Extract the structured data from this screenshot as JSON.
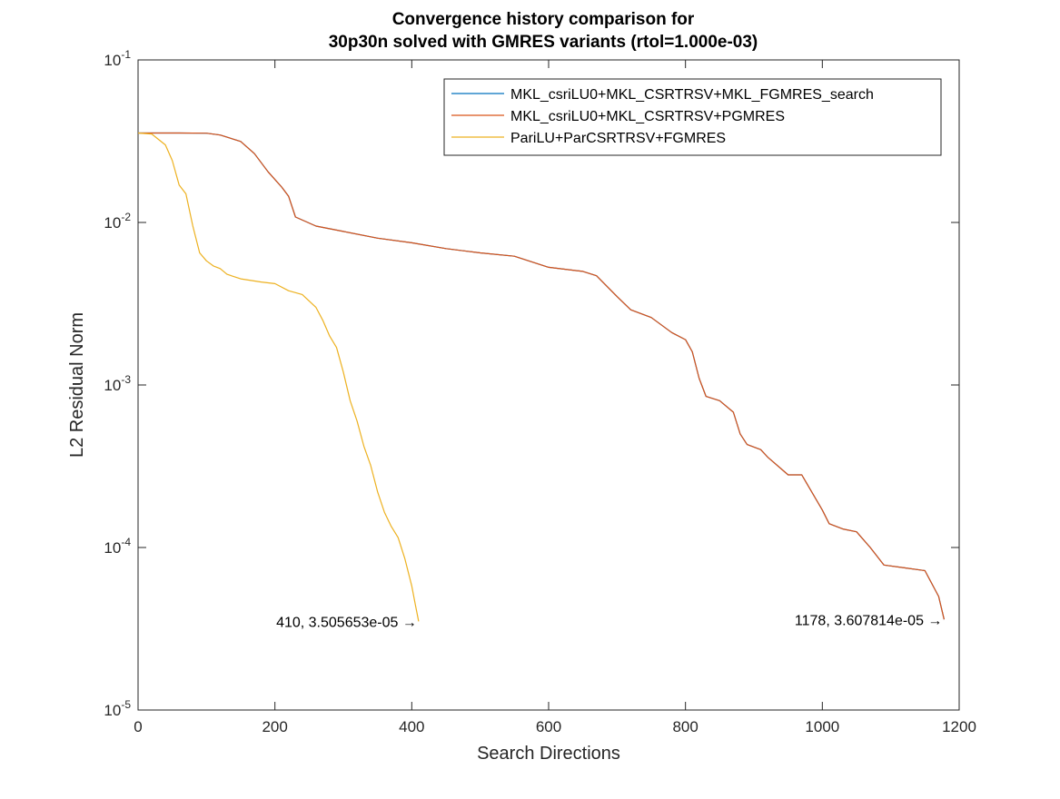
{
  "chart_data": {
    "type": "line",
    "title_lines": [
      "Convergence history comparison for",
      "30p30n solved with GMRES variants (rtol=1.000e-03)"
    ],
    "xlabel": "Search Directions",
    "ylabel": "L2 Residual Norm",
    "xlim": [
      0,
      1200
    ],
    "ylim": [
      1e-05,
      0.1
    ],
    "yscale": "log",
    "grid": false,
    "legend_position": "top-right",
    "xticks": [
      {
        "value": 0,
        "label": "0"
      },
      {
        "value": 200,
        "label": "200"
      },
      {
        "value": 400,
        "label": "400"
      },
      {
        "value": 600,
        "label": "600"
      },
      {
        "value": 800,
        "label": "800"
      },
      {
        "value": 1000,
        "label": "1000"
      },
      {
        "value": 1200,
        "label": "1200"
      }
    ],
    "yticks": [
      {
        "value": 1e-05,
        "base": "10",
        "exp": "-5"
      },
      {
        "value": 0.0001,
        "base": "10",
        "exp": "-4"
      },
      {
        "value": 0.001,
        "base": "10",
        "exp": "-3"
      },
      {
        "value": 0.01,
        "base": "10",
        "exp": "-2"
      },
      {
        "value": 0.1,
        "base": "10",
        "exp": "-1"
      }
    ],
    "series": [
      {
        "name": "MKL_csriLU0+MKL_CSRTRSV+MKL_FGMRES_search",
        "color": "#0072BD",
        "x": [
          0,
          30,
          60,
          100,
          120,
          150,
          170,
          190,
          210,
          220,
          230,
          260,
          300,
          350,
          400,
          450,
          500,
          550,
          600,
          650,
          670,
          700,
          720,
          750,
          780,
          800,
          810,
          820,
          830,
          850,
          870,
          880,
          890,
          910,
          920,
          950,
          970,
          1000,
          1010,
          1030,
          1050,
          1070,
          1090,
          1120,
          1150,
          1170,
          1178
        ],
        "y": [
          0.0355,
          0.0355,
          0.0355,
          0.0354,
          0.0345,
          0.0315,
          0.0265,
          0.0205,
          0.0165,
          0.0145,
          0.0108,
          0.0095,
          0.0088,
          0.008,
          0.0075,
          0.0069,
          0.0065,
          0.0062,
          0.0053,
          0.005,
          0.0047,
          0.0035,
          0.0029,
          0.0026,
          0.0021,
          0.0019,
          0.0016,
          0.0011,
          0.00085,
          0.0008,
          0.00068,
          0.0005,
          0.00043,
          0.0004,
          0.00036,
          0.00028,
          0.00028,
          0.00017,
          0.00014,
          0.00013,
          0.000125,
          0.0001,
          7.8e-05,
          7.5e-05,
          7.2e-05,
          5e-05,
          3.61e-05
        ]
      },
      {
        "name": "MKL_csriLU0+MKL_CSRTRSV+PGMRES",
        "color": "#D95319",
        "x": [
          0,
          30,
          60,
          100,
          120,
          150,
          170,
          190,
          210,
          220,
          230,
          260,
          300,
          350,
          400,
          450,
          500,
          550,
          600,
          650,
          670,
          700,
          720,
          750,
          780,
          800,
          810,
          820,
          830,
          850,
          870,
          880,
          890,
          910,
          920,
          950,
          970,
          1000,
          1010,
          1030,
          1050,
          1070,
          1090,
          1120,
          1150,
          1170,
          1178
        ],
        "y": [
          0.0355,
          0.0355,
          0.0355,
          0.0354,
          0.0345,
          0.0315,
          0.0265,
          0.0205,
          0.0165,
          0.0145,
          0.0108,
          0.0095,
          0.0088,
          0.008,
          0.0075,
          0.0069,
          0.0065,
          0.0062,
          0.0053,
          0.005,
          0.0047,
          0.0035,
          0.0029,
          0.0026,
          0.0021,
          0.0019,
          0.0016,
          0.0011,
          0.00085,
          0.0008,
          0.00068,
          0.0005,
          0.00043,
          0.0004,
          0.00036,
          0.00028,
          0.00028,
          0.00017,
          0.00014,
          0.00013,
          0.000125,
          0.0001,
          7.8e-05,
          7.5e-05,
          7.2e-05,
          5e-05,
          3.61e-05
        ]
      },
      {
        "name": "PariLU+ParCSRTRSV+FGMRES",
        "color": "#EDB120",
        "x": [
          0,
          20,
          40,
          50,
          60,
          70,
          80,
          90,
          100,
          110,
          120,
          130,
          150,
          180,
          200,
          220,
          240,
          260,
          270,
          280,
          290,
          300,
          310,
          320,
          330,
          340,
          350,
          360,
          370,
          380,
          390,
          400,
          405,
          410
        ],
        "y": [
          0.0355,
          0.035,
          0.03,
          0.024,
          0.017,
          0.015,
          0.0095,
          0.0065,
          0.0058,
          0.0054,
          0.0052,
          0.0048,
          0.0045,
          0.0043,
          0.0042,
          0.0038,
          0.0036,
          0.003,
          0.0025,
          0.002,
          0.0017,
          0.0012,
          0.0008,
          0.0006,
          0.00042,
          0.00032,
          0.00022,
          0.000165,
          0.000135,
          0.000115,
          8.5e-05,
          5.8e-05,
          4.5e-05,
          3.51e-05
        ]
      }
    ],
    "annotations": [
      {
        "text": "410, 3.505653e-05 →",
        "x": 410,
        "y": 3.505653e-05
      },
      {
        "text": "1178, 3.607814e-05 →",
        "x": 1178,
        "y": 3.607814e-05
      }
    ]
  }
}
